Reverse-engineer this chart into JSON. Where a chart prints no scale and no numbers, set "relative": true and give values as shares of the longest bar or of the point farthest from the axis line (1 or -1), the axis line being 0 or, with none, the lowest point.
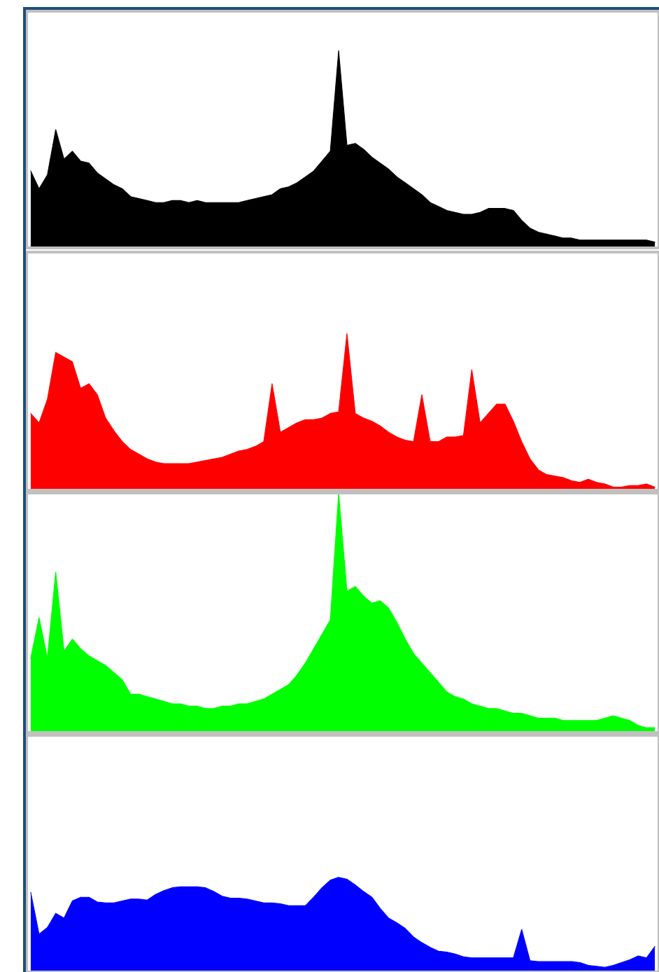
{
  "chart_data": [
    {
      "type": "area",
      "relative": true,
      "color": "#000000",
      "categories": [
        null,
        null,
        null,
        null,
        null,
        null,
        null,
        null,
        null,
        null,
        null,
        null,
        null,
        null,
        null,
        null,
        null,
        null,
        null,
        null,
        null,
        null,
        null,
        null,
        null,
        null,
        null,
        null,
        null,
        null,
        null,
        null,
        null,
        null,
        null,
        null,
        null,
        null,
        null,
        null,
        null,
        null,
        null,
        null,
        null,
        null,
        null,
        null,
        null,
        null,
        null,
        null,
        null,
        null,
        null,
        null,
        null,
        null,
        null,
        null,
        null,
        null,
        null,
        null,
        null,
        null,
        null,
        null,
        null,
        null,
        null,
        null,
        null,
        null,
        null,
        null
      ],
      "values": [
        0.39,
        0.3,
        0.37,
        0.6,
        0.45,
        0.49,
        0.44,
        0.43,
        0.38,
        0.35,
        0.32,
        0.3,
        0.26,
        0.25,
        0.24,
        0.23,
        0.23,
        0.24,
        0.24,
        0.23,
        0.24,
        0.23,
        0.23,
        0.23,
        0.23,
        0.23,
        0.24,
        0.25,
        0.26,
        0.27,
        0.3,
        0.31,
        0.33,
        0.36,
        0.39,
        0.44,
        0.49,
        1.0,
        0.52,
        0.53,
        0.5,
        0.46,
        0.43,
        0.4,
        0.36,
        0.33,
        0.3,
        0.27,
        0.23,
        0.21,
        0.19,
        0.18,
        0.17,
        0.17,
        0.18,
        0.2,
        0.2,
        0.2,
        0.19,
        0.14,
        0.1,
        0.08,
        0.07,
        0.06,
        0.05,
        0.05,
        0.04,
        0.04,
        0.04,
        0.04,
        0.04,
        0.04,
        0.04,
        0.04,
        0.04,
        0.03
      ]
    },
    {
      "type": "area",
      "relative": true,
      "color": "#ff0000",
      "categories": [
        null,
        null,
        null,
        null,
        null,
        null,
        null,
        null,
        null,
        null,
        null,
        null,
        null,
        null,
        null,
        null,
        null,
        null,
        null,
        null,
        null,
        null,
        null,
        null,
        null,
        null,
        null,
        null,
        null,
        null,
        null,
        null,
        null,
        null,
        null,
        null,
        null,
        null,
        null,
        null,
        null,
        null,
        null,
        null,
        null,
        null,
        null,
        null,
        null,
        null,
        null,
        null,
        null,
        null,
        null,
        null,
        null,
        null,
        null,
        null,
        null,
        null,
        null,
        null,
        null,
        null,
        null,
        null,
        null,
        null,
        null,
        null,
        null,
        null,
        null,
        null
      ],
      "values": [
        0.49,
        0.43,
        0.58,
        0.88,
        0.85,
        0.82,
        0.65,
        0.68,
        0.61,
        0.46,
        0.38,
        0.31,
        0.26,
        0.23,
        0.2,
        0.18,
        0.17,
        0.17,
        0.17,
        0.17,
        0.18,
        0.19,
        0.2,
        0.21,
        0.23,
        0.25,
        0.26,
        0.28,
        0.31,
        0.68,
        0.37,
        0.4,
        0.43,
        0.45,
        0.45,
        0.46,
        0.49,
        0.5,
        1.0,
        0.49,
        0.46,
        0.44,
        0.41,
        0.37,
        0.34,
        0.32,
        0.31,
        0.61,
        0.31,
        0.31,
        0.34,
        0.34,
        0.35,
        0.77,
        0.43,
        0.49,
        0.55,
        0.55,
        0.44,
        0.31,
        0.2,
        0.13,
        0.1,
        0.09,
        0.08,
        0.06,
        0.05,
        0.07,
        0.05,
        0.04,
        0.02,
        0.02,
        0.03,
        0.03,
        0.04,
        0.02
      ]
    },
    {
      "type": "area",
      "relative": true,
      "color": "#00ff00",
      "categories": [
        null,
        null,
        null,
        null,
        null,
        null,
        null,
        null,
        null,
        null,
        null,
        null,
        null,
        null,
        null,
        null,
        null,
        null,
        null,
        null,
        null,
        null,
        null,
        null,
        null,
        null,
        null,
        null,
        null,
        null,
        null,
        null,
        null,
        null,
        null,
        null,
        null,
        null,
        null,
        null,
        null,
        null,
        null,
        null,
        null,
        null,
        null,
        null,
        null,
        null,
        null,
        null,
        null,
        null,
        null,
        null,
        null,
        null,
        null,
        null,
        null,
        null,
        null,
        null,
        null,
        null,
        null,
        null,
        null,
        null,
        null,
        null,
        null,
        null,
        null,
        null
      ],
      "values": [
        0.31,
        0.48,
        0.31,
        0.67,
        0.34,
        0.39,
        0.35,
        0.32,
        0.3,
        0.28,
        0.25,
        0.22,
        0.16,
        0.16,
        0.15,
        0.14,
        0.13,
        0.12,
        0.12,
        0.11,
        0.11,
        0.1,
        0.1,
        0.11,
        0.11,
        0.12,
        0.12,
        0.13,
        0.14,
        0.16,
        0.18,
        0.2,
        0.24,
        0.29,
        0.35,
        0.41,
        0.47,
        1.0,
        0.59,
        0.61,
        0.57,
        0.54,
        0.55,
        0.52,
        0.46,
        0.39,
        0.33,
        0.29,
        0.25,
        0.21,
        0.17,
        0.15,
        0.14,
        0.12,
        0.11,
        0.1,
        0.1,
        0.09,
        0.08,
        0.08,
        0.07,
        0.06,
        0.06,
        0.06,
        0.05,
        0.05,
        0.05,
        0.05,
        0.05,
        0.06,
        0.07,
        0.06,
        0.05,
        0.03,
        0.02,
        0.02
      ]
    },
    {
      "type": "area",
      "relative": true,
      "color": "#0000ff",
      "categories": [
        null,
        null,
        null,
        null,
        null,
        null,
        null,
        null,
        null,
        null,
        null,
        null,
        null,
        null,
        null,
        null,
        null,
        null,
        null,
        null,
        null,
        null,
        null,
        null,
        null,
        null,
        null,
        null,
        null,
        null,
        null,
        null,
        null,
        null,
        null,
        null,
        null,
        null,
        null,
        null,
        null,
        null,
        null,
        null,
        null,
        null,
        null,
        null,
        null,
        null,
        null,
        null,
        null,
        null,
        null,
        null,
        null,
        null,
        null,
        null,
        null,
        null,
        null,
        null,
        null,
        null,
        null,
        null,
        null,
        null,
        null,
        null,
        null,
        null,
        null,
        null
      ],
      "values": [
        0.84,
        0.4,
        0.47,
        0.62,
        0.57,
        0.75,
        0.79,
        0.79,
        0.74,
        0.73,
        0.73,
        0.75,
        0.77,
        0.77,
        0.76,
        0.82,
        0.86,
        0.89,
        0.9,
        0.9,
        0.9,
        0.89,
        0.85,
        0.8,
        0.78,
        0.78,
        0.77,
        0.75,
        0.73,
        0.73,
        0.72,
        0.7,
        0.7,
        0.7,
        0.79,
        0.89,
        0.97,
        1.0,
        0.98,
        0.92,
        0.85,
        0.79,
        0.67,
        0.57,
        0.52,
        0.46,
        0.37,
        0.31,
        0.26,
        0.22,
        0.21,
        0.19,
        0.16,
        0.15,
        0.15,
        0.15,
        0.15,
        0.15,
        0.15,
        0.45,
        0.12,
        0.11,
        0.11,
        0.11,
        0.11,
        0.11,
        0.1,
        0.07,
        0.06,
        0.05,
        0.07,
        0.1,
        0.13,
        0.17,
        0.15,
        0.27
      ]
    }
  ]
}
